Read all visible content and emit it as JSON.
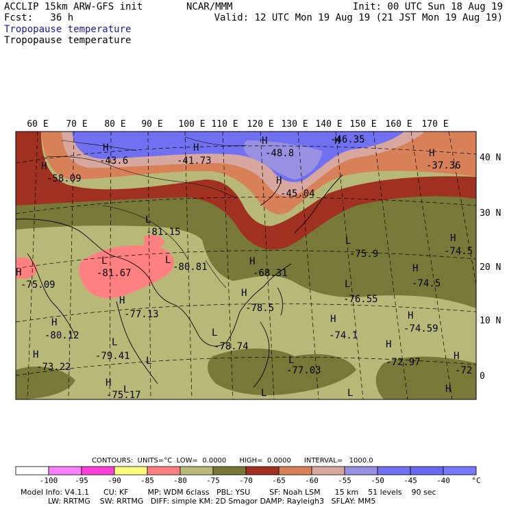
{
  "header": {
    "title": "ACCLIP 15km ARW-GFS init",
    "fcst": "Fcst:   36 h",
    "subtitle_1": "Tropopause temperature",
    "subtitle_2": "Tropopause temperature",
    "center": "NCAR/MMM",
    "init": "Init: 00 UTC Sun 18 Aug 19",
    "valid": "Valid: 12 UTC Mon 19 Aug 19 (21 JST Mon 19 Aug 19)"
  },
  "lon_labels": [
    "60 E",
    "70 E",
    "80 E",
    "90 E",
    "100 E",
    "110 E",
    "120 E",
    "130 E",
    "140 E",
    "150 E",
    "160 E",
    "170 E"
  ],
  "lat_labels": [
    "40 N",
    "30 N",
    "20 N",
    "10 N",
    "0"
  ],
  "map_labels": [
    {
      "t": "H",
      "k": "h"
    },
    {
      "t": "-58.09",
      "k": "v"
    },
    {
      "t": "H",
      "k": "h"
    },
    {
      "t": "-43.6",
      "k": "v"
    },
    {
      "t": "H",
      "k": "h"
    },
    {
      "t": "-41.73",
      "k": "v"
    },
    {
      "t": "H",
      "k": "h"
    },
    {
      "t": "-48.8",
      "k": "v"
    },
    {
      "t": "H",
      "k": "h"
    },
    {
      "t": "-46.35",
      "k": "v"
    },
    {
      "t": "H",
      "k": "h"
    },
    {
      "t": "-37.36",
      "k": "v"
    },
    {
      "t": "H",
      "k": "h"
    },
    {
      "t": "-45.04",
      "k": "v"
    },
    {
      "t": "L",
      "k": "l"
    },
    {
      "t": "-81.15",
      "k": "v"
    },
    {
      "t": "L",
      "k": "l"
    },
    {
      "t": "-81.67",
      "k": "v"
    },
    {
      "t": "L",
      "k": "l"
    },
    {
      "t": "-80.81",
      "k": "v"
    },
    {
      "t": "H",
      "k": "h"
    },
    {
      "t": "-75.09",
      "k": "v"
    },
    {
      "t": "H",
      "k": "h"
    },
    {
      "t": "-77.13",
      "k": "v"
    },
    {
      "t": "H",
      "k": "h"
    },
    {
      "t": "-80.12",
      "k": "v"
    },
    {
      "t": "L",
      "k": "l"
    },
    {
      "t": "-79.41",
      "k": "v"
    },
    {
      "t": "H",
      "k": "h"
    },
    {
      "t": "-73.22",
      "k": "v"
    },
    {
      "t": "H",
      "k": "h"
    },
    {
      "t": "-75.17",
      "k": "v"
    },
    {
      "t": "L",
      "k": "l"
    },
    {
      "t": "-78.74",
      "k": "v"
    },
    {
      "t": "H",
      "k": "h"
    },
    {
      "t": "-78.5",
      "k": "v"
    },
    {
      "t": "H",
      "k": "h"
    },
    {
      "t": "-68.31",
      "k": "v"
    },
    {
      "t": "L",
      "k": "l"
    },
    {
      "t": "-77.03",
      "k": "v"
    },
    {
      "t": "L",
      "k": "l"
    },
    {
      "t": "-75.9",
      "k": "v"
    },
    {
      "t": "L",
      "k": "l"
    },
    {
      "t": "-76.55",
      "k": "v"
    },
    {
      "t": "H",
      "k": "h"
    },
    {
      "t": "-74.5",
      "k": "v"
    },
    {
      "t": "H",
      "k": "h"
    },
    {
      "t": "-74.5",
      "k": "v"
    },
    {
      "t": "H",
      "k": "h"
    },
    {
      "t": "-74.59",
      "k": "v"
    },
    {
      "t": "H",
      "k": "h"
    },
    {
      "t": "-74.1",
      "k": "v"
    },
    {
      "t": "H",
      "k": "h"
    },
    {
      "t": "-72.97",
      "k": "v"
    },
    {
      "t": "H",
      "k": "h"
    },
    {
      "t": "-72",
      "k": "v"
    },
    {
      "t": "L",
      "k": "l"
    },
    {
      "t": "L",
      "k": "l"
    },
    {
      "t": "L",
      "k": "l"
    },
    {
      "t": "H",
      "k": "h"
    },
    {
      "t": "L",
      "k": "l"
    }
  ],
  "colorbar": {
    "colors": [
      "#ffffff",
      "#ff80ff",
      "#ff40d8",
      "#ffff80",
      "#ff8080",
      "#b8b878",
      "#787838",
      "#a03020",
      "#d88058",
      "#d8a8a0",
      "#9890e0",
      "#7070f0",
      "#6868f0",
      "#7878ff"
    ],
    "ticks": [
      "-100",
      "-95",
      "-90",
      "-85",
      "-80",
      "-75",
      "-70",
      "-65",
      "-60",
      "-55",
      "-50",
      "-45",
      "-40",
      "°C"
    ]
  },
  "contours_line": "CONTOURS:  UNITS=°C  LOW=  0.0000      HIGH=  0.0000      INTERVAL=   1000.0",
  "model_line_1": "Model Info: V4.1.1      CU: KF        MP: WDM 6class   PBL: YSU        SF: Noah LSM      15 km    51 levels    90 sec",
  "model_line_2": "LW: RRTMG    SW: RRTMG   DIFF: simple KM: 2D Smagor DAMP: Rayleigh3   SFLAY: MM5"
}
